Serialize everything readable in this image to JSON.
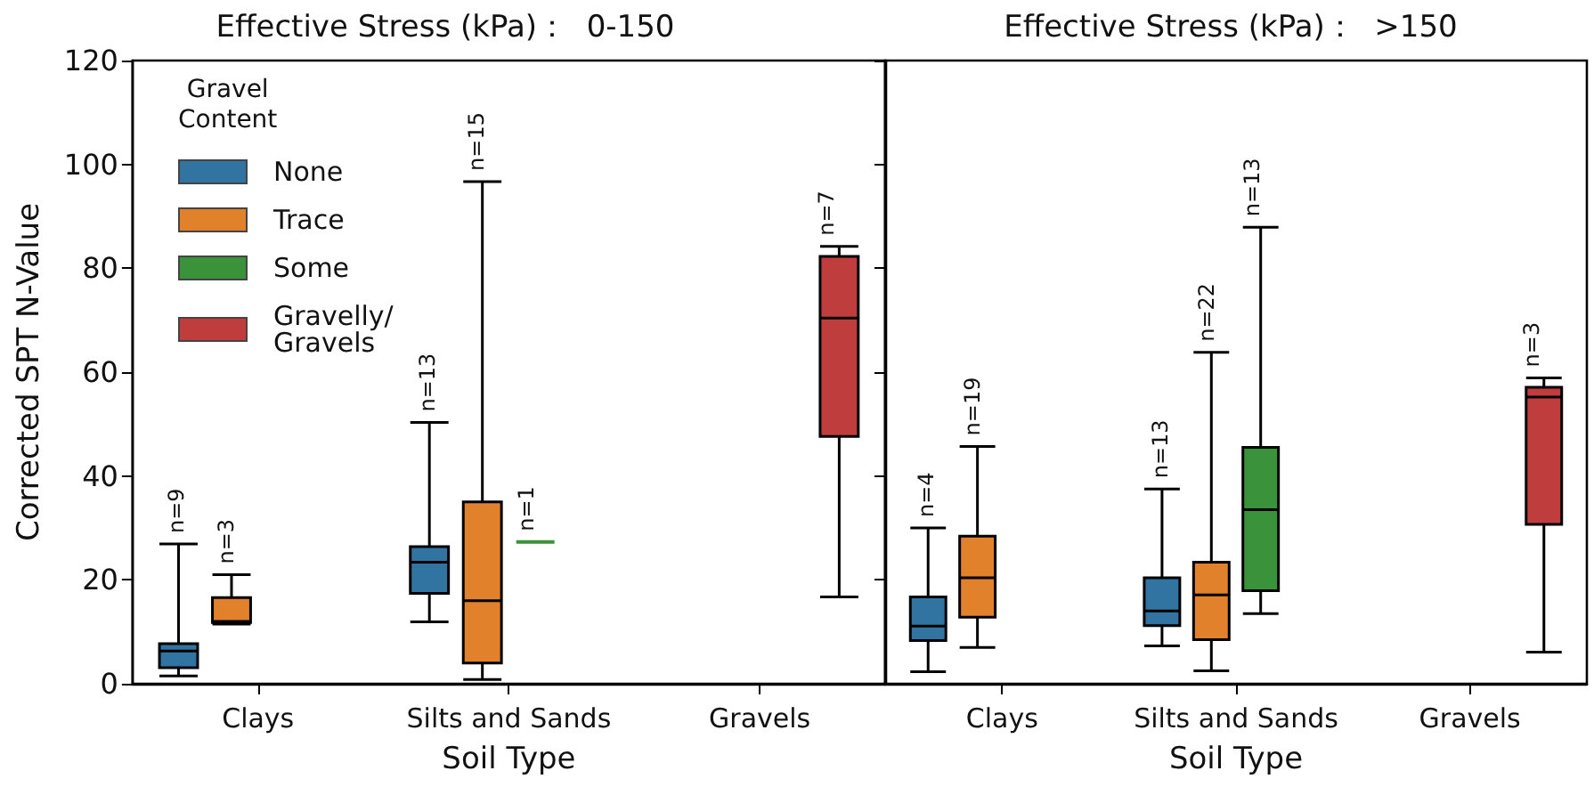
{
  "chart_data": [
    {
      "type": "box",
      "title": "Effective Stress (kPa)：  0-150",
      "xlabel": "Soil Type",
      "ylabel": "Corrected SPT N-Value",
      "categories": [
        "Clays",
        "Silts and Sands",
        "Gravels"
      ],
      "ylim": [
        0,
        120
      ],
      "yticks": [
        0,
        20,
        40,
        60,
        80,
        100,
        120
      ],
      "grid": false,
      "legend": "top left",
      "legend_title": "Gravel\nContent",
      "series": [
        {
          "name": "None",
          "color": "#3274a1",
          "boxes": [
            {
              "low": 1.5,
              "q1": 3.1,
              "median": 6.3,
              "q3": 7.7,
              "high": 26.9
            },
            {
              "low": 11.9,
              "q1": 17.4,
              "median": 23.4,
              "q3": 26.4,
              "high": 50.3
            },
            null
          ]
        },
        {
          "name": "Trace",
          "color": "#e1812c",
          "boxes": [
            {
              "low": 11.5,
              "q1": 11.8,
              "median": 12.0,
              "q3": 16.6,
              "high": 21.0
            },
            {
              "low": 0.8,
              "q1": 4.0,
              "median": 16.0,
              "q3": 35.0,
              "high": 96.7
            },
            null
          ]
        },
        {
          "name": "Some",
          "color": "#3a923a",
          "boxes": [
            null,
            {
              "low": 27.3,
              "q1": 27.3,
              "median": 27.3,
              "q3": 27.3,
              "high": 27.3
            },
            null
          ]
        },
        {
          "name": "Gravelly/\nGravels",
          "color": "#c03d3e",
          "boxes": [
            null,
            null,
            {
              "low": 16.7,
              "q1": 47.6,
              "median": 70.4,
              "q3": 82.3,
              "high": 84.2
            }
          ]
        }
      ],
      "annotations": [
        "n=9",
        "n=3",
        "n=13",
        "n=15",
        "n=1",
        "n=7"
      ]
    },
    {
      "type": "box",
      "title": "Effective Stress (kPa)：  >150",
      "xlabel": "Soil Type",
      "categories": [
        "Clays",
        "Silts and Sands",
        "Gravels"
      ],
      "ylim": [
        0,
        120
      ],
      "yticks": [
        0,
        20,
        40,
        60,
        80,
        100,
        120
      ],
      "grid": false,
      "tick_labels": "x",
      "series": [
        {
          "color": "#3274a1",
          "boxes": [
            {
              "low": 2.3,
              "q1": 8.3,
              "median": 11.1,
              "q3": 16.7,
              "high": 30.0
            },
            {
              "low": 7.3,
              "q1": 11.2,
              "median": 14.0,
              "q3": 20.4,
              "high": 37.5
            },
            null
          ]
        },
        {
          "color": "#e1812c",
          "boxes": [
            {
              "low": 7.0,
              "q1": 12.8,
              "median": 20.4,
              "q3": 28.4,
              "high": 45.7
            },
            {
              "low": 2.5,
              "q1": 8.5,
              "median": 17.1,
              "q3": 23.4,
              "high": 63.8
            },
            null
          ]
        },
        {
          "color": "#3a923a",
          "boxes": [
            null,
            {
              "low": 13.5,
              "q1": 17.9,
              "median": 33.5,
              "q3": 45.5,
              "high": 87.9
            },
            null
          ]
        },
        {
          "color": "#c03d3e",
          "boxes": [
            null,
            null,
            {
              "low": 6.1,
              "q1": 30.7,
              "median": 55.2,
              "q3": 57.1,
              "high": 58.9
            }
          ]
        }
      ],
      "annotations": [
        "n=4",
        "n=19",
        "n=13",
        "n=22",
        "n=13",
        "n=3"
      ]
    }
  ]
}
